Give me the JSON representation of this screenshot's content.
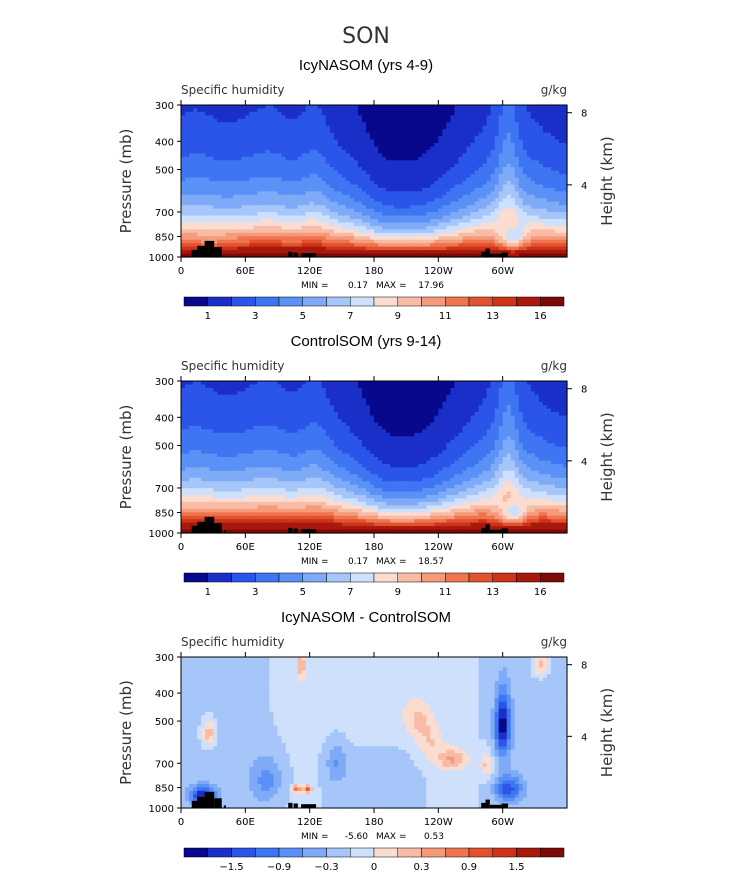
{
  "figure_title": "SON",
  "colors": {
    "palette": [
      "#08088c",
      "#1a2fc8",
      "#2a55e8",
      "#3e75f2",
      "#5a91f6",
      "#7eaaf8",
      "#a6c6fa",
      "#cfe0fc",
      "#fbdcd0",
      "#f8bca6",
      "#f59a7a",
      "#ee7550",
      "#e3522f",
      "#cc3318",
      "#a8180c",
      "#7c0a06"
    ],
    "land": "#000000"
  },
  "chart_data": [
    {
      "type": "heatmap",
      "title": "IcyNASOM (yrs 4-9)",
      "variable": "Specific humidity",
      "units": "g/kg",
      "ylabel": "Pressure (mb)",
      "ylabel_right": "Height (km)",
      "y_ticks": [
        "300",
        "400",
        "500",
        "700",
        "850",
        "1000"
      ],
      "y_values": [
        300,
        400,
        500,
        700,
        850,
        1000
      ],
      "right_ticks": [
        "8",
        "4"
      ],
      "right_values": [
        8,
        4
      ],
      "x_ticks": [
        "0",
        "60E",
        "120E",
        "180",
        "120W",
        "60W"
      ],
      "x_values": [
        0,
        60,
        120,
        180,
        240,
        300
      ],
      "xlim": [
        0,
        360
      ],
      "min_label": "MIN =",
      "min": "0.17",
      "max_label": "MAX =",
      "max": "17.96",
      "cb_labels": [
        "1",
        "3",
        "5",
        "7",
        "9",
        "11",
        "13",
        "16"
      ],
      "levels": [
        1,
        2,
        3,
        4,
        5,
        6,
        7,
        8,
        9,
        10,
        11,
        12,
        13,
        14,
        16
      ],
      "field": "q"
    },
    {
      "type": "heatmap",
      "title": "ControlSOM (yrs 9-14)",
      "variable": "Specific humidity",
      "units": "g/kg",
      "ylabel": "Pressure (mb)",
      "ylabel_right": "Height (km)",
      "y_ticks": [
        "300",
        "400",
        "500",
        "700",
        "850",
        "1000"
      ],
      "y_values": [
        300,
        400,
        500,
        700,
        850,
        1000
      ],
      "right_ticks": [
        "8",
        "4"
      ],
      "right_values": [
        8,
        4
      ],
      "x_ticks": [
        "0",
        "60E",
        "120E",
        "180",
        "120W",
        "60W"
      ],
      "x_values": [
        0,
        60,
        120,
        180,
        240,
        300
      ],
      "xlim": [
        0,
        360
      ],
      "min_label": "MIN =",
      "min": "0.17",
      "max_label": "MAX =",
      "max": "18.57",
      "cb_labels": [
        "1",
        "3",
        "5",
        "7",
        "9",
        "11",
        "13",
        "16"
      ],
      "levels": [
        1,
        2,
        3,
        4,
        5,
        6,
        7,
        8,
        9,
        10,
        11,
        12,
        13,
        14,
        16
      ],
      "field": "q"
    },
    {
      "type": "heatmap",
      "title": "IcyNASOM - ControlSOM",
      "variable": "Specific humidity",
      "units": "g/kg",
      "ylabel": "Pressure (mb)",
      "ylabel_right": "Height (km)",
      "y_ticks": [
        "300",
        "400",
        "500",
        "700",
        "850",
        "1000"
      ],
      "y_values": [
        300,
        400,
        500,
        700,
        850,
        1000
      ],
      "right_ticks": [
        "8",
        "4"
      ],
      "right_values": [
        8,
        4
      ],
      "x_ticks": [
        "0",
        "60E",
        "120E",
        "180",
        "120W",
        "60W"
      ],
      "x_values": [
        0,
        60,
        120,
        180,
        240,
        300
      ],
      "xlim": [
        0,
        360
      ],
      "min_label": "MIN =",
      "min": "-5.60",
      "max_label": "MAX =",
      "max": "0.53",
      "cb_labels": [
        "−1.5",
        "−0.9",
        "−0.3",
        "0",
        "0.3",
        "0.9",
        "1.5"
      ],
      "levels": [
        -2.1,
        -1.8,
        -1.5,
        -1.2,
        -0.9,
        -0.6,
        -0.3,
        0,
        0.3,
        0.6,
        0.9,
        1.2,
        1.5,
        1.8,
        2.1
      ],
      "field": "diff"
    }
  ]
}
